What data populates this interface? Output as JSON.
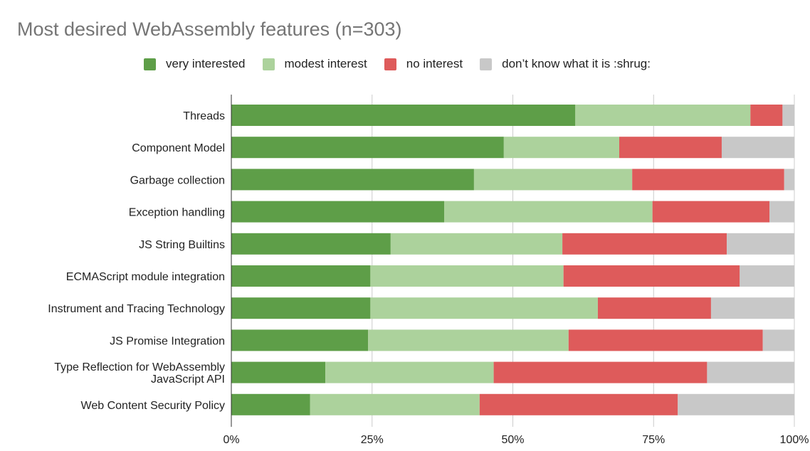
{
  "chart_data": {
    "type": "bar",
    "orientation": "horizontal",
    "stacked": "percent",
    "title": "Most desired WebAssembly features (n=303)",
    "categories": [
      "Threads",
      "Component Model",
      "Garbage collection",
      "Exception handling",
      "JS String Builtins",
      "ECMAScript module integration",
      "Instrument and Tracing Technology",
      "JS Promise Integration",
      "Type Reflection for WebAssembly JavaScript API",
      "Web Content Security Policy"
    ],
    "category_lines": [
      [
        "Threads"
      ],
      [
        "Component Model"
      ],
      [
        "Garbage collection"
      ],
      [
        "Exception handling"
      ],
      [
        "JS String Builtins"
      ],
      [
        "ECMAScript module integration"
      ],
      [
        "Instrument and Tracing Technology"
      ],
      [
        "JS Promise Integration"
      ],
      [
        "Type Reflection for WebAssembly",
        "JavaScript API"
      ],
      [
        "Web Content Security Policy"
      ]
    ],
    "series": [
      {
        "name": "very interested",
        "color": "#5e9e48",
        "values": [
          61.1,
          48.4,
          43.1,
          37.8,
          28.3,
          24.7,
          24.7,
          24.3,
          16.7,
          14.0
        ]
      },
      {
        "name": "modest interest",
        "color": "#acd29c",
        "values": [
          31.1,
          20.5,
          28.1,
          37.0,
          30.5,
          34.3,
          40.4,
          35.6,
          29.9,
          30.1
        ]
      },
      {
        "name": "no interest",
        "color": "#de5b5b",
        "values": [
          5.7,
          18.2,
          27.0,
          20.8,
          29.2,
          31.3,
          20.1,
          34.5,
          37.9,
          35.2
        ]
      },
      {
        "name": "don’t know what it is :shrug:",
        "color": "#c8c8c8",
        "values": [
          2.1,
          12.9,
          1.8,
          4.4,
          12.0,
          9.7,
          14.8,
          5.6,
          15.5,
          20.7
        ]
      }
    ],
    "xlim": [
      0,
      100
    ],
    "xticks": [
      "0%",
      "25%",
      "50%",
      "75%",
      "100%"
    ],
    "grid": true,
    "legend": "top"
  }
}
